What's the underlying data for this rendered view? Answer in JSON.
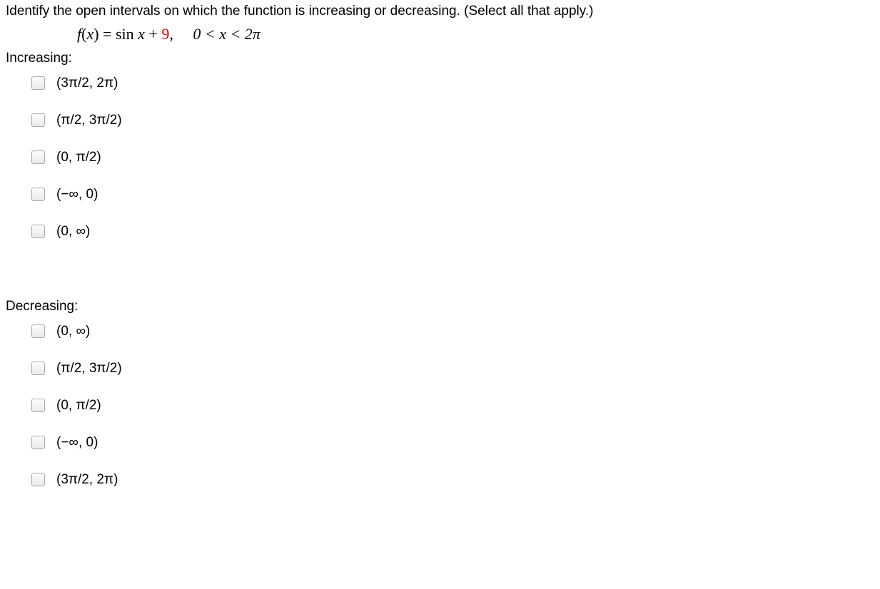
{
  "question": "Identify the open intervals on which the function is increasing or decreasing. (Select all that apply.)",
  "formula": {
    "fx": "f",
    "args_open": "(",
    "var": "x",
    "args_close": ")",
    "eq": " = ",
    "sin": "sin ",
    "plus": " + ",
    "constant": "9",
    "comma": ",",
    "domain": "0 < x < 2π"
  },
  "sections": {
    "increasing": {
      "label": "Increasing:",
      "options": [
        "(3π/2, 2π)",
        "(π/2, 3π/2)",
        "(0, π/2)",
        "(−∞, 0)",
        "(0, ∞)"
      ]
    },
    "decreasing": {
      "label": "Decreasing:",
      "options": [
        "(0, ∞)",
        "(π/2, 3π/2)",
        "(0, π/2)",
        "(−∞, 0)",
        "(3π/2, 2π)"
      ]
    }
  }
}
